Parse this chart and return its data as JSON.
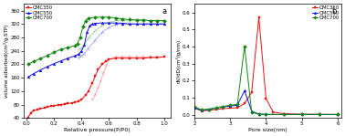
{
  "left": {
    "title": "a",
    "xlabel": "Relative pressure(P/P0)",
    "ylabel": "volume adsorbed(cm³/g.STP)",
    "ylim": [
      40,
      380
    ],
    "xlim": [
      -0.02,
      1.05
    ],
    "yticks": [
      40,
      80,
      120,
      160,
      200,
      240,
      280,
      320,
      360
    ],
    "xticks": [
      0.0,
      0.2,
      0.4,
      0.6,
      0.8,
      1.0
    ],
    "series": {
      "OMC350": {
        "color": "#EE1111",
        "marker": "s",
        "adsorption_x": [
          0.01,
          0.03,
          0.05,
          0.08,
          0.1,
          0.13,
          0.15,
          0.18,
          0.2,
          0.23,
          0.25,
          0.28,
          0.3,
          0.33,
          0.35,
          0.38,
          0.4,
          0.43,
          0.45,
          0.48,
          0.5,
          0.52,
          0.55,
          0.58,
          0.6,
          0.65,
          0.7,
          0.75,
          0.8,
          0.85,
          0.9,
          0.95,
          1.0
        ],
        "adsorption_y": [
          42,
          55,
          62,
          66,
          68,
          71,
          73,
          75,
          77,
          79,
          80,
          82,
          83,
          85,
          87,
          91,
          95,
          108,
          120,
          145,
          165,
          185,
          200,
          210,
          215,
          218,
          218,
          218,
          218,
          218,
          220,
          220,
          222
        ],
        "desorption_x": [
          1.0,
          0.95,
          0.9,
          0.85,
          0.8,
          0.75,
          0.7,
          0.65,
          0.6,
          0.58,
          0.56,
          0.54,
          0.52,
          0.5,
          0.48
        ],
        "desorption_y": [
          222,
          222,
          222,
          222,
          222,
          222,
          222,
          222,
          215,
          195,
          175,
          150,
          130,
          110,
          95
        ]
      },
      "OMC550": {
        "color": "#1111EE",
        "marker": "^",
        "adsorption_x": [
          0.01,
          0.05,
          0.1,
          0.15,
          0.2,
          0.25,
          0.3,
          0.35,
          0.38,
          0.4,
          0.42,
          0.44,
          0.46,
          0.48,
          0.5,
          0.55,
          0.6,
          0.65,
          0.7,
          0.75,
          0.8,
          0.85,
          0.9,
          0.95,
          1.0
        ],
        "adsorption_y": [
          162,
          172,
          183,
          193,
          202,
          210,
          218,
          225,
          230,
          240,
          258,
          295,
          315,
          320,
          322,
          323,
          323,
          323,
          322,
          320,
          320,
          320,
          320,
          320,
          320
        ],
        "desorption_x": [
          1.0,
          0.95,
          0.9,
          0.85,
          0.8,
          0.75,
          0.7,
          0.65,
          0.6,
          0.55,
          0.5,
          0.45,
          0.42,
          0.4,
          0.38
        ],
        "desorption_y": [
          320,
          320,
          320,
          320,
          320,
          320,
          320,
          318,
          310,
          295,
          272,
          248,
          232,
          225,
          220
        ]
      },
      "OMC700": {
        "color": "#118811",
        "marker": "D",
        "adsorption_x": [
          0.01,
          0.05,
          0.1,
          0.15,
          0.2,
          0.25,
          0.3,
          0.35,
          0.37,
          0.39,
          0.41,
          0.43,
          0.45,
          0.5,
          0.55,
          0.6,
          0.65,
          0.7,
          0.75,
          0.8,
          0.85,
          0.9,
          0.95,
          1.0
        ],
        "adsorption_y": [
          200,
          208,
          217,
          226,
          236,
          244,
          250,
          255,
          262,
          280,
          312,
          330,
          338,
          340,
          340,
          340,
          338,
          335,
          333,
          332,
          332,
          330,
          330,
          330
        ],
        "desorption_x": [
          1.0,
          0.95,
          0.9,
          0.85,
          0.8,
          0.75,
          0.7,
          0.65,
          0.6,
          0.55,
          0.5,
          0.45,
          0.42,
          0.4,
          0.38
        ],
        "desorption_y": [
          330,
          330,
          330,
          330,
          330,
          330,
          330,
          330,
          325,
          315,
          300,
          278,
          258,
          248,
          244
        ]
      }
    }
  },
  "right": {
    "title": "b",
    "xlabel": "Pore size(nm)",
    "ylabel": "dV/dD(cm³/g/nm)",
    "ylim": [
      -0.02,
      0.65
    ],
    "xlim": [
      2.0,
      6.1
    ],
    "yticks": [
      0.0,
      0.1,
      0.2,
      0.3,
      0.4,
      0.5,
      0.6
    ],
    "xticks": [
      2,
      3,
      4,
      5,
      6
    ],
    "series": {
      "OMC350": {
        "color": "#EE1111",
        "marker": "s",
        "x": [
          2.0,
          2.2,
          2.4,
          2.6,
          2.8,
          3.0,
          3.2,
          3.4,
          3.6,
          3.8,
          4.0,
          4.2,
          4.5,
          5.0,
          5.5,
          6.0
        ],
        "y": [
          0.04,
          0.022,
          0.025,
          0.03,
          0.035,
          0.038,
          0.04,
          0.065,
          0.13,
          0.57,
          0.095,
          0.015,
          0.005,
          0.002,
          0.001,
          0.0
        ]
      },
      "OMC550": {
        "color": "#1111EE",
        "marker": "^",
        "x": [
          2.0,
          2.2,
          2.4,
          2.6,
          2.8,
          3.0,
          3.2,
          3.4,
          3.6,
          3.8,
          4.0,
          4.5,
          5.0,
          5.5,
          6.0
        ],
        "y": [
          0.038,
          0.025,
          0.03,
          0.038,
          0.045,
          0.05,
          0.055,
          0.14,
          0.02,
          0.003,
          0.001,
          0.001,
          0.001,
          0.001,
          0.001
        ]
      },
      "OMC700": {
        "color": "#118811",
        "marker": "D",
        "x": [
          2.0,
          2.2,
          2.4,
          2.6,
          2.8,
          3.0,
          3.2,
          3.4,
          3.6,
          3.8,
          4.0,
          4.5,
          5.0,
          5.5,
          6.0
        ],
        "y": [
          0.048,
          0.028,
          0.032,
          0.04,
          0.048,
          0.055,
          0.06,
          0.4,
          0.012,
          0.003,
          0.001,
          0.001,
          0.001,
          0.001,
          0.001
        ]
      }
    }
  }
}
